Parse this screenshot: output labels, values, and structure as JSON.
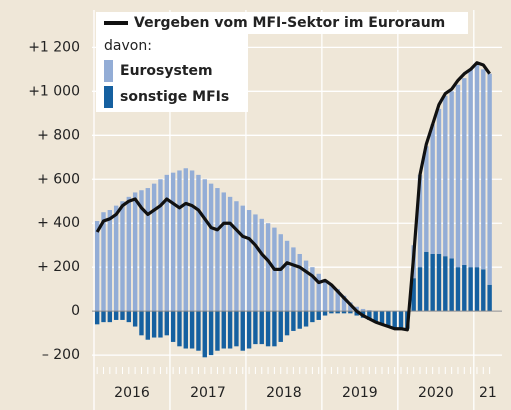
{
  "chart_data": {
    "type": "bar_line",
    "year_labels": [
      "2016",
      "2017",
      "2018",
      "2019",
      "2020",
      "21"
    ],
    "series": [
      {
        "name": "Eurosystem",
        "color": "#93add6",
        "values": [
          410,
          450,
          460,
          480,
          500,
          520,
          540,
          550,
          560,
          580,
          600,
          620,
          630,
          640,
          650,
          640,
          620,
          600,
          580,
          560,
          540,
          520,
          500,
          480,
          460,
          440,
          420,
          400,
          380,
          350,
          320,
          290,
          260,
          230,
          200,
          170,
          140,
          120,
          100,
          70,
          40,
          20,
          10,
          5,
          0,
          0,
          0,
          0,
          0,
          0,
          150,
          420,
          480,
          590,
          660,
          730,
          760,
          830,
          850,
          900,
          920,
          910,
          960
        ]
      },
      {
        "name": "sonstige MFIs",
        "color": "#1560a0",
        "values": [
          -60,
          -50,
          -50,
          -40,
          -40,
          -50,
          -70,
          -110,
          -130,
          -120,
          -120,
          -110,
          -140,
          -160,
          -170,
          -170,
          -180,
          -210,
          -200,
          -180,
          -170,
          -170,
          -160,
          -180,
          -170,
          -150,
          -150,
          -160,
          -160,
          -140,
          -110,
          -90,
          -80,
          -70,
          -50,
          -40,
          -20,
          -10,
          -10,
          -10,
          -10,
          -20,
          -30,
          -40,
          -50,
          -60,
          -70,
          -80,
          -80,
          -80,
          150,
          200,
          270,
          260,
          260,
          250,
          240,
          200,
          210,
          200,
          200,
          190,
          120
        ]
      },
      {
        "name": "Vergeben vom MFI-Sektor im Euroraum",
        "color": "#111111",
        "type": "line",
        "values": [
          360,
          410,
          420,
          440,
          480,
          500,
          510,
          470,
          440,
          460,
          480,
          510,
          490,
          470,
          490,
          480,
          460,
          420,
          380,
          370,
          400,
          400,
          370,
          340,
          330,
          300,
          260,
          230,
          190,
          190,
          220,
          210,
          200,
          180,
          160,
          130,
          140,
          120,
          90,
          60,
          30,
          0,
          -20,
          -35,
          -50,
          -60,
          -70,
          -80,
          -80,
          -85,
          250,
          620,
          760,
          850,
          940,
          990,
          1010,
          1050,
          1080,
          1100,
          1130,
          1120,
          1080
        ]
      }
    ],
    "legend_note": "davon:",
    "ylim": [
      -245,
      1370
    ],
    "yticks": [
      {
        "value": -200,
        "label": "– 200"
      },
      0,
      {
        "value": 200,
        "label": "+ 200"
      },
      {
        "value": 400,
        "label": "+ 400"
      },
      {
        "value": 600,
        "label": "+ 600"
      },
      {
        "value": 800,
        "label": "+ 800"
      },
      {
        "value": 1000,
        "label": "+1 000"
      },
      {
        "value": 1200,
        "label": "+1 200"
      }
    ],
    "grid": true
  }
}
